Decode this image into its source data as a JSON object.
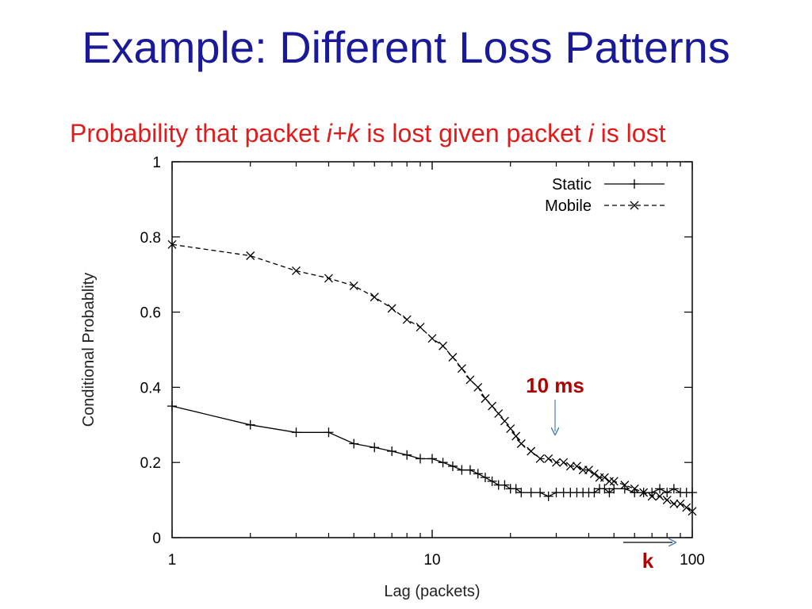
{
  "slide": {
    "title": "Example: Different Loss Patterns",
    "subtitle_parts": {
      "a": "Probability that packet ",
      "b": "i+k",
      "c": " is lost given packet ",
      "d": "i",
      "e": " is lost"
    }
  },
  "chart_data": {
    "type": "line",
    "title": "",
    "xlabel": "Lag (packets)",
    "ylabel": "Conditional Probablity",
    "xscale": "log",
    "xlim": [
      1,
      100
    ],
    "ylim": [
      0,
      1
    ],
    "xticks": [
      1,
      10,
      100
    ],
    "xtick_labels": [
      "1",
      "10",
      "100"
    ],
    "yticks": [
      0,
      0.2,
      0.4,
      0.6,
      0.8,
      1
    ],
    "ytick_labels": [
      "0",
      "0.2",
      "0.4",
      "0.6",
      "0.8",
      "1"
    ],
    "grid": false,
    "legend_position": "top-right",
    "series": [
      {
        "name": "Static",
        "marker": "+",
        "line": "solid",
        "x": [
          1,
          2,
          3,
          4,
          5,
          6,
          7,
          8,
          9,
          10,
          11,
          12,
          13,
          14,
          15,
          16,
          17,
          18,
          19,
          20,
          21,
          22,
          24,
          26,
          28,
          30,
          32,
          34,
          36,
          38,
          40,
          42,
          44,
          46,
          48,
          50,
          55,
          60,
          65,
          70,
          75,
          80,
          85,
          90,
          95,
          100
        ],
        "y": [
          0.35,
          0.3,
          0.28,
          0.28,
          0.25,
          0.24,
          0.23,
          0.22,
          0.21,
          0.21,
          0.2,
          0.19,
          0.18,
          0.18,
          0.17,
          0.16,
          0.15,
          0.14,
          0.14,
          0.13,
          0.13,
          0.12,
          0.12,
          0.12,
          0.11,
          0.12,
          0.12,
          0.12,
          0.12,
          0.12,
          0.12,
          0.12,
          0.13,
          0.13,
          0.12,
          0.13,
          0.13,
          0.12,
          0.12,
          0.12,
          0.13,
          0.12,
          0.13,
          0.12,
          0.12,
          0.12
        ]
      },
      {
        "name": "Mobile",
        "marker": "x",
        "line": "dashed",
        "x": [
          1,
          2,
          3,
          4,
          5,
          6,
          7,
          8,
          9,
          10,
          11,
          12,
          13,
          14,
          15,
          16,
          17,
          18,
          19,
          20,
          21,
          22,
          24,
          26,
          28,
          30,
          32,
          34,
          36,
          38,
          40,
          42,
          44,
          46,
          48,
          50,
          55,
          60,
          65,
          70,
          75,
          80,
          85,
          90,
          95,
          100
        ],
        "y": [
          0.78,
          0.75,
          0.71,
          0.69,
          0.67,
          0.64,
          0.61,
          0.58,
          0.56,
          0.53,
          0.51,
          0.48,
          0.45,
          0.42,
          0.4,
          0.37,
          0.35,
          0.33,
          0.31,
          0.29,
          0.27,
          0.25,
          0.23,
          0.21,
          0.21,
          0.2,
          0.2,
          0.19,
          0.19,
          0.18,
          0.18,
          0.17,
          0.16,
          0.16,
          0.15,
          0.15,
          0.14,
          0.13,
          0.12,
          0.11,
          0.11,
          0.1,
          0.09,
          0.09,
          0.08,
          0.07
        ]
      }
    ],
    "annotations": [
      {
        "text": "10 ms",
        "x": 30,
        "y": 0.28,
        "color": "#b00000",
        "arrow": "down",
        "name": "annotation-10ms"
      },
      {
        "text": "k",
        "x": 70,
        "y": -0.05,
        "color": "#b00000",
        "arrow": "right",
        "name": "annotation-k"
      }
    ],
    "colors": {
      "line": "#000000",
      "annotation": "#b00000",
      "arrow": "#4a7ebb"
    }
  }
}
